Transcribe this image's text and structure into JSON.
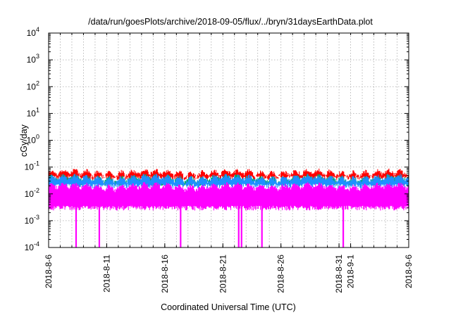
{
  "chart_data": {
    "type": "line",
    "title": "/data/run/goesPlots/archive/2018-09-05/flux/../bryn/31daysEarthData.plot",
    "xlabel": "Coordinated Universal Time (UTC)",
    "ylabel": "cGy/day",
    "y_scale": "log",
    "ylim": [
      0.0001,
      10000
    ],
    "xlim": [
      "2018-08-06",
      "2018-09-06"
    ],
    "grid": true,
    "legend": "none",
    "x_ticks": [
      "2018-8-6",
      "2018-8-11",
      "2018-8-16",
      "2018-8-21",
      "2018-8-26",
      "2018-8-31",
      "2018-9-1",
      "2018-9-6"
    ],
    "y_ticks": [
      {
        "base": "10",
        "exp": "-4"
      },
      {
        "base": "10",
        "exp": "-3"
      },
      {
        "base": "10",
        "exp": "-2"
      },
      {
        "base": "10",
        "exp": "-1"
      },
      {
        "base": "10",
        "exp": "0"
      },
      {
        "base": "10",
        "exp": "1"
      },
      {
        "base": "10",
        "exp": "2"
      },
      {
        "base": "10",
        "exp": "3"
      },
      {
        "base": "10",
        "exp": "4"
      }
    ],
    "series": [
      {
        "color": "#ff0000",
        "typical_max": 0.08,
        "typical_min": 0.04
      },
      {
        "color": "#00aa66",
        "typical_max": 0.05,
        "typical_min": 0.025
      },
      {
        "color": "#1e90ff",
        "typical_max": 0.05,
        "typical_min": 0.02
      },
      {
        "color": "#ff00ff",
        "typical_max": 0.025,
        "typical_min": 0.003,
        "dropouts": [
          "2018-08-08",
          "2018-08-10",
          "2018-08-17",
          "2018-08-22",
          "2018-08-22",
          "2018-08-24",
          "2018-08-31"
        ]
      }
    ]
  }
}
